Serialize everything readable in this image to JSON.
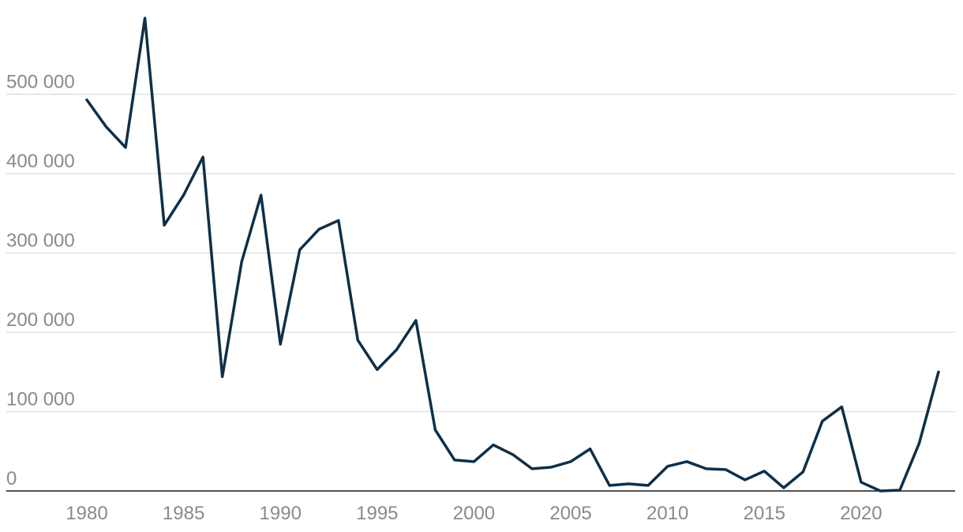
{
  "chart_data": {
    "type": "line",
    "title": "",
    "xlabel": "",
    "ylabel": "",
    "x": [
      1980,
      1981,
      1982,
      1983,
      1984,
      1985,
      1986,
      1987,
      1988,
      1989,
      1990,
      1991,
      1992,
      1993,
      1994,
      1995,
      1996,
      1997,
      1998,
      1999,
      2000,
      2001,
      2002,
      2003,
      2004,
      2005,
      2006,
      2007,
      2008,
      2009,
      2010,
      2011,
      2012,
      2013,
      2014,
      2015,
      2016,
      2017,
      2018,
      2019,
      2020,
      2021,
      2022,
      2023,
      2024
    ],
    "series": [
      {
        "values": [
          493000,
          459000,
          433000,
          596000,
          335000,
          373000,
          421000,
          144000,
          289000,
          373000,
          185000,
          304000,
          330000,
          341000,
          190000,
          153000,
          178000,
          215000,
          77000,
          39000,
          37000,
          58000,
          46000,
          28000,
          30000,
          37000,
          53000,
          7000,
          9000,
          7000,
          31000,
          37000,
          28000,
          27000,
          14000,
          25000,
          4000,
          24000,
          88000,
          106000,
          11000,
          0,
          1000,
          60000,
          150000
        ],
        "color": "#0e3048"
      }
    ],
    "xlim": [
      1980,
      2024
    ],
    "ylim": [
      0,
      600000
    ],
    "xticks": [
      1980,
      1985,
      1990,
      1995,
      2000,
      2005,
      2010,
      2015,
      2020
    ],
    "xtick_labels": [
      "1980",
      "1985",
      "1990",
      "1995",
      "2000",
      "2005",
      "2010",
      "2015",
      "2020"
    ],
    "yticks": [
      0,
      100000,
      200000,
      300000,
      400000,
      500000
    ],
    "ytick_labels": [
      "0",
      "100 000",
      "200 000",
      "300 000",
      "400 000",
      "500 000"
    ],
    "grid": "horizontal",
    "legend": "none"
  }
}
